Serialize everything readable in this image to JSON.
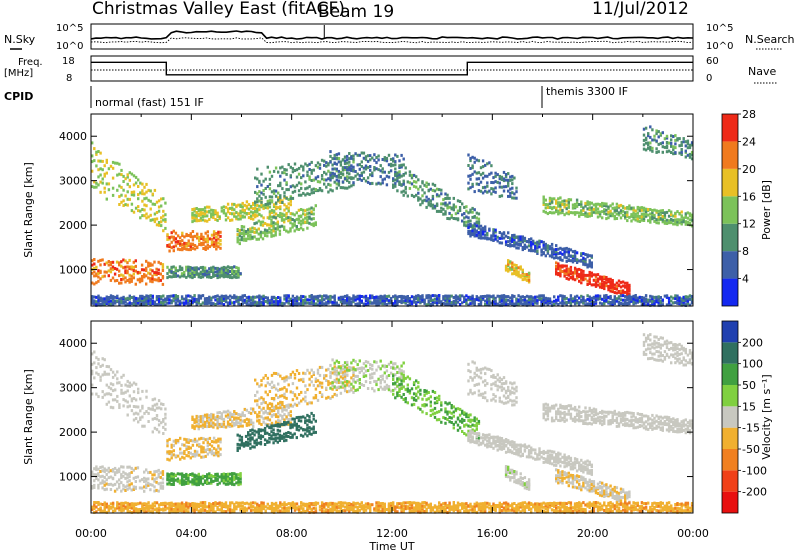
{
  "header": {
    "title": "Christmas Valley East (fitACF)",
    "beam": "Beam 19",
    "date": "11/Jul/2012"
  },
  "noise_panel": {
    "left_label": "N.Sky",
    "right_label": "N.Search",
    "left_ticks": [
      "10^5",
      "10^0"
    ],
    "right_ticks": [
      "10^5",
      "10^0"
    ]
  },
  "freq_panel": {
    "left_label_line1": "Freq.",
    "left_label_line2": "[MHz]",
    "right_label": "Nave",
    "left_ticks": [
      "18",
      "8"
    ],
    "right_ticks": [
      "60",
      "0"
    ],
    "freq_mhz": [
      {
        "from_hour": 0,
        "to_hour": 3,
        "value": 15.5
      },
      {
        "from_hour": 3,
        "to_hour": 15,
        "value": 10.5
      },
      {
        "from_hour": 15,
        "to_hour": 24,
        "value": 15.5
      }
    ]
  },
  "cpid": {
    "label": "CPID",
    "entries": [
      {
        "from_hour": 0,
        "text": "normal (fast) 151 IF"
      },
      {
        "from_hour": 18,
        "text": "themis 3300 IF"
      }
    ]
  },
  "chart_data": [
    {
      "type": "heatmap",
      "name": "power",
      "ylabel": "Slant Range [km]",
      "xlabel": "Time UT",
      "xlim": [
        0,
        24
      ],
      "ylim": [
        180,
        4500
      ],
      "y_ticks": [
        "1000",
        "2000",
        "3000",
        "4000"
      ],
      "x_ticks": [
        "00:00",
        "04:00",
        "08:00",
        "12:00",
        "16:00",
        "20:00",
        "00:00"
      ],
      "colorbar": {
        "label": "Power [dB]",
        "tick_labels": [
          "4",
          "8",
          "12",
          "16",
          "20",
          "24",
          "28"
        ],
        "colors": [
          "#1428f0",
          "#3d5fa8",
          "#4e8f6e",
          "#7cc25a",
          "#e8c026",
          "#f07a1e",
          "#ee2a18"
        ]
      }
    },
    {
      "type": "heatmap",
      "name": "velocity",
      "ylabel": "Slant Range [km]",
      "xlabel": "Time UT",
      "xlim": [
        0,
        24
      ],
      "ylim": [
        180,
        4500
      ],
      "y_ticks": [
        "1000",
        "2000",
        "3000",
        "4000"
      ],
      "x_ticks": [
        "00:00",
        "04:00",
        "08:00",
        "12:00",
        "16:00",
        "20:00",
        "00:00"
      ],
      "colorbar": {
        "label": "Velocity [m s⁻¹]",
        "tick_labels": [
          "200",
          "100",
          "50",
          "15",
          "-15",
          "-50",
          "-100",
          "-200"
        ],
        "colors": [
          "#2040b0",
          "#307060",
          "#40a040",
          "#80d040",
          "#c8c8c0",
          "#f0b030",
          "#f08020",
          "#f04018",
          "#e81010"
        ]
      }
    }
  ],
  "x_axis": {
    "label": "Time UT",
    "ticks": [
      "00:00",
      "04:00",
      "08:00",
      "12:00",
      "16:00",
      "20:00",
      "00:00"
    ]
  },
  "echo_regions": [
    {
      "t0": 0.0,
      "t1": 3.0,
      "r0": 2800,
      "r1": 3900,
      "r0e": 1850,
      "r1e": 2600,
      "pow": 16,
      "vel": 0
    },
    {
      "t0": 0.0,
      "t1": 2.9,
      "r0": 700,
      "r1": 1300,
      "r0e": 700,
      "r1e": 1200,
      "pow": 22,
      "vel": -5
    },
    {
      "t0": 3.0,
      "t1": 5.2,
      "r0": 1400,
      "r1": 1900,
      "r0e": 1500,
      "r1e": 1900,
      "pow": 22,
      "vel": -20
    },
    {
      "t0": 3.0,
      "t1": 6.0,
      "r0": 850,
      "r1": 1100,
      "r0e": 850,
      "r1e": 1100,
      "pow": 10,
      "vel": 40
    },
    {
      "t0": 4.0,
      "t1": 8.0,
      "r0": 2100,
      "r1": 2400,
      "r0e": 2200,
      "r1e": 2700,
      "pow": 16,
      "vel": -15
    },
    {
      "t0": 5.8,
      "t1": 9.0,
      "r0": 1600,
      "r1": 2000,
      "r0e": 2000,
      "r1e": 2500,
      "pow": 14,
      "vel": 120
    },
    {
      "t0": 6.5,
      "t1": 10.5,
      "r0": 2400,
      "r1": 3300,
      "r0e": 2900,
      "r1e": 3600,
      "pow": 10,
      "vel": -20
    },
    {
      "t0": 9.5,
      "t1": 12.5,
      "r0": 3000,
      "r1": 3700,
      "r0e": 2900,
      "r1e": 3600,
      "pow": 8,
      "vel": 10
    },
    {
      "t0": 12.0,
      "t1": 15.5,
      "r0": 2800,
      "r1": 3500,
      "r0e": 1800,
      "r1e": 2300,
      "pow": 10,
      "vel": 30
    },
    {
      "t0": 15.0,
      "t1": 20.0,
      "r0": 1800,
      "r1": 2100,
      "r0e": 1050,
      "r1e": 1350,
      "pow": 6,
      "vel": 0
    },
    {
      "t0": 15.0,
      "t1": 17.0,
      "r0": 2800,
      "r1": 3700,
      "r0e": 2600,
      "r1e": 3100,
      "pow": 8,
      "vel": 0
    },
    {
      "t0": 16.5,
      "t1": 17.5,
      "r0": 1000,
      "r1": 1300,
      "r0e": 700,
      "r1e": 950,
      "pow": 18,
      "vel": 5
    },
    {
      "t0": 18.0,
      "t1": 24.0,
      "r0": 2300,
      "r1": 2700,
      "r0e": 2000,
      "r1e": 2300,
      "pow": 14,
      "vel": 0
    },
    {
      "t0": 18.5,
      "t1": 21.5,
      "r0": 900,
      "r1": 1200,
      "r0e": 400,
      "r1e": 700,
      "pow": 26,
      "vel": -10
    },
    {
      "t0": 22.0,
      "t1": 24.0,
      "r0": 3700,
      "r1": 4300,
      "r0e": 3500,
      "r1e": 3900,
      "pow": 10,
      "vel": 0
    },
    {
      "t0": 0.0,
      "t1": 24.0,
      "r0": 200,
      "r1": 450,
      "r0e": 200,
      "r1e": 450,
      "pow": 6,
      "vel": -40
    }
  ]
}
